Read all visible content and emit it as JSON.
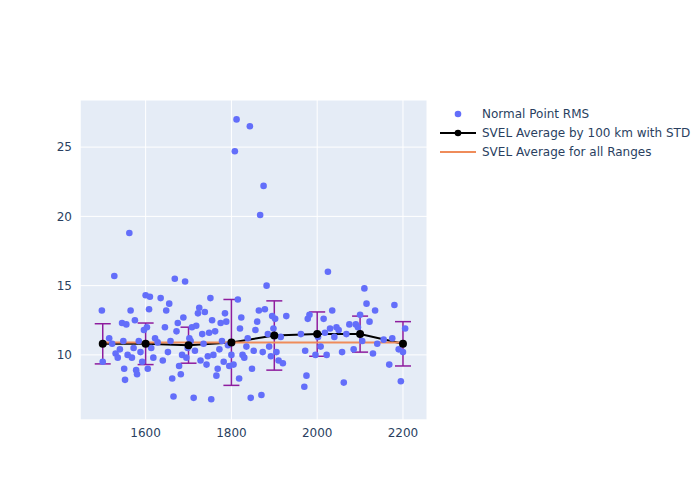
{
  "chart_data": {
    "type": "scatter",
    "xlim": [
      1447,
      2256
    ],
    "xticks": [
      1600,
      1800,
      2000,
      2200
    ],
    "ylim": [
      5.3,
      28.4
    ],
    "yticks": [
      10,
      15,
      20,
      25
    ],
    "grid": true,
    "legend": "right",
    "series": [
      {
        "name": "Normal Point RMS",
        "type": "scatter",
        "color": "#636efa",
        "marker": "circle",
        "x": [
          1498,
          1500,
          1515,
          1522,
          1527,
          1530,
          1535,
          1540,
          1545,
          1548,
          1550,
          1552,
          1555,
          1558,
          1562,
          1565,
          1568,
          1572,
          1575,
          1578,
          1580,
          1584,
          1588,
          1592,
          1596,
          1600,
          1603,
          1605,
          1608,
          1610,
          1613,
          1618,
          1622,
          1628,
          1635,
          1640,
          1645,
          1648,
          1652,
          1655,
          1658,
          1662,
          1665,
          1668,
          1672,
          1675,
          1678,
          1682,
          1685,
          1688,
          1692,
          1695,
          1698,
          1702,
          1705,
          1708,
          1712,
          1715,
          1718,
          1722,
          1725,
          1728,
          1732,
          1735,
          1738,
          1742,
          1745,
          1748,
          1751,
          1753,
          1755,
          1758,
          1762,
          1765,
          1768,
          1772,
          1775,
          1778,
          1782,
          1785,
          1788,
          1792,
          1795,
          1800,
          1805,
          1808,
          1812,
          1815,
          1818,
          1820,
          1823,
          1826,
          1830,
          1835,
          1838,
          1843,
          1845,
          1848,
          1852,
          1856,
          1860,
          1864,
          1867,
          1870,
          1873,
          1875,
          1878,
          1882,
          1885,
          1888,
          1892,
          1895,
          1898,
          1902,
          1905,
          1910,
          1915,
          1920,
          1928,
          1962,
          1970,
          1972,
          1975,
          1978,
          1982,
          1996,
          2002,
          2008,
          2015,
          2018,
          2022,
          2025,
          2030,
          2035,
          2040,
          2045,
          2050,
          2058,
          2062,
          2068,
          2075,
          2085,
          2090,
          2095,
          2100,
          2105,
          2110,
          2115,
          2122,
          2130,
          2135,
          2140,
          2155,
          2168,
          2175,
          2180,
          2190,
          2195,
          2200,
          2205
        ],
        "values": [
          13.2,
          9.5,
          11.2,
          10.8,
          15.7,
          10.1,
          9.8,
          10.4,
          12.3,
          11.0,
          9.0,
          8.2,
          12.2,
          10.0,
          18.8,
          13.2,
          9.8,
          10.5,
          12.5,
          8.9,
          8.6,
          11.0,
          10.2,
          9.5,
          11.8,
          14.3,
          12.0,
          9.0,
          13.3,
          14.2,
          10.5,
          9.8,
          11.2,
          10.9,
          14.1,
          9.6,
          12.0,
          13.2,
          10.2,
          13.7,
          11.0,
          8.3,
          7.0,
          15.5,
          11.7,
          12.3,
          9.2,
          8.6,
          10.0,
          12.7,
          15.3,
          9.8,
          10.5,
          11.2,
          11.0,
          12.0,
          6.9,
          10.3,
          12.1,
          13.0,
          13.4,
          9.6,
          11.5,
          10.8,
          13.1,
          9.3,
          9.9,
          11.6,
          14.1,
          6.8,
          12.5,
          10.0,
          11.7,
          8.5,
          9.0,
          10.4,
          12.3,
          11.0,
          9.5,
          13.0,
          12.4,
          10.7,
          9.2,
          10.0,
          9.3,
          24.7,
          27.0,
          14.0,
          8.3,
          11.9,
          12.7,
          10.0,
          9.8,
          10.6,
          11.2,
          26.5,
          6.9,
          9.0,
          10.3,
          11.8,
          12.4,
          13.2,
          20.1,
          7.1,
          10.2,
          22.2,
          13.3,
          15.0,
          11.5,
          10.6,
          9.9,
          12.8,
          11.9,
          12.6,
          10.2,
          9.6,
          11.3,
          9.4,
          12.8,
          11.5,
          7.7,
          10.3,
          8.5,
          12.6,
          12.9,
          10.0,
          11.3,
          10.6,
          12.6,
          11.6,
          10.0,
          16.0,
          11.9,
          13.2,
          11.3,
          12.0,
          11.8,
          10.2,
          8.0,
          11.5,
          12.2,
          10.4,
          12.2,
          12.0,
          12.9,
          11.0,
          14.8,
          13.7,
          12.4,
          10.1,
          13.2,
          10.8,
          11.1,
          9.3,
          11.2,
          13.6,
          10.4,
          8.1,
          10.2,
          11.9
        ]
      },
      {
        "name": "SVEL Average by 100 km with STD",
        "type": "line",
        "color": "#000000",
        "marker": "circle",
        "error_color": "#8e1c9e",
        "x": [
          1500,
          1600,
          1700,
          1800,
          1900,
          2000,
          2100,
          2200
        ],
        "values": [
          10.8,
          10.8,
          10.7,
          10.9,
          11.4,
          11.5,
          11.5,
          10.8
        ],
        "std": [
          1.45,
          1.5,
          1.3,
          3.1,
          2.5,
          1.6,
          1.3,
          1.6
        ]
      },
      {
        "name": "SVEL Average for all Ranges",
        "type": "line",
        "color": "#ef8c5a",
        "marker": "none",
        "x": [
          1500,
          2200
        ],
        "values": [
          10.9,
          10.9
        ]
      }
    ]
  }
}
